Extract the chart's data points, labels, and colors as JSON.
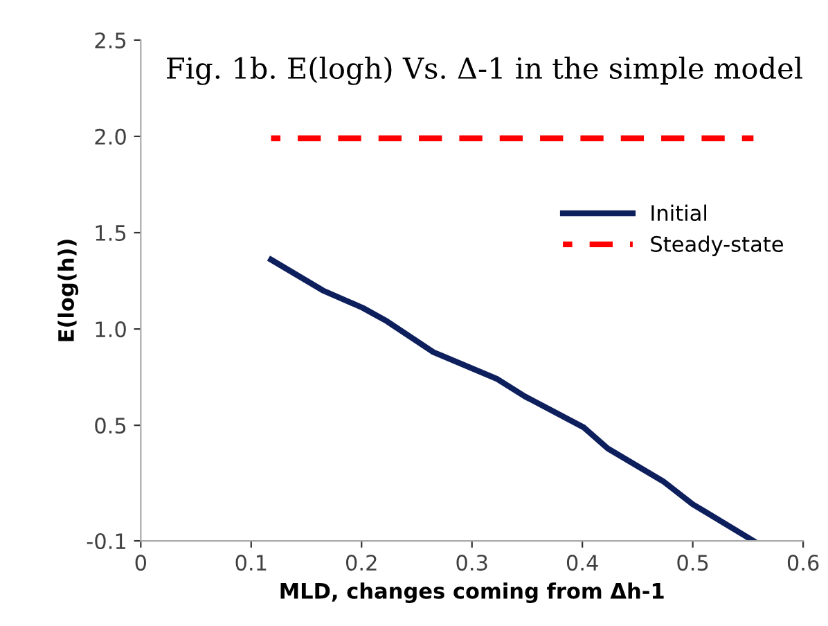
{
  "chart_data": {
    "type": "line",
    "title": "Fig. 1b. E(logh) Vs. Δ-1 in the simple model",
    "xlabel": "MLD, changes coming from Δh-1",
    "ylabel": "E(log(h))",
    "x": [
      0.118,
      0.165,
      0.201,
      0.223,
      0.265,
      0.323,
      0.348,
      0.401,
      0.423,
      0.473,
      0.5,
      0.555
    ],
    "series": [
      {
        "name": "Initial",
        "color": "#0d1f5c",
        "line_style": "solid",
        "values": [
          1.36,
          1.2,
          1.11,
          1.04,
          0.88,
          0.74,
          0.65,
          0.49,
          0.38,
          0.21,
          0.09,
          -0.1
        ]
      },
      {
        "name": "Steady-state",
        "color": "#ff0000",
        "line_style": "dashed",
        "values": [
          1.99,
          1.99,
          1.99,
          1.99,
          1.99,
          1.99,
          1.99,
          1.99,
          1.99,
          1.99,
          1.99,
          1.99
        ]
      }
    ],
    "xlim": [
      0,
      0.6
    ],
    "xticks": [
      0,
      0.1,
      0.2,
      0.3,
      0.4,
      0.5,
      0.6
    ],
    "ylim": [
      -0.1,
      2.5
    ],
    "yticks": [
      -0.1,
      {
        "value": 0.5,
        "label": "0.5"
      },
      {
        "value": 1.0,
        "label": "1.0"
      },
      {
        "value": 1.5,
        "label": "1.5"
      },
      {
        "value": 2.0,
        "label": "2.0"
      },
      2.5
    ],
    "grid": false,
    "legend": "right",
    "marker": "none"
  }
}
